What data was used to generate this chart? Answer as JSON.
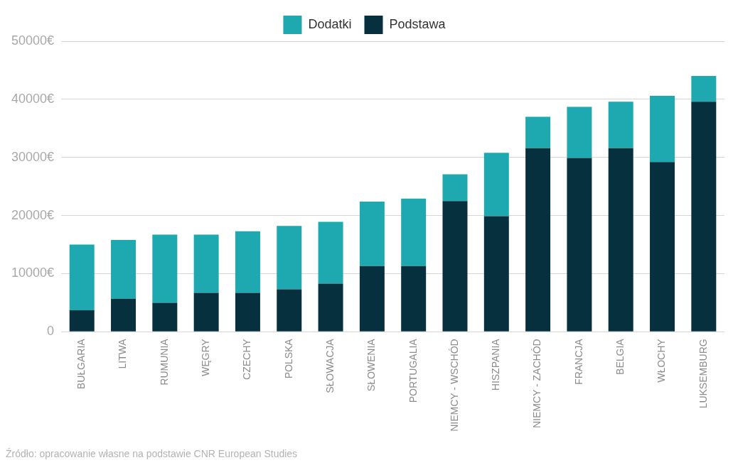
{
  "chart_data": {
    "type": "bar",
    "stacked": true,
    "categories": [
      "BUŁGARIA",
      "LITWA",
      "RUMUNIA",
      "WĘGRY",
      "CZECHY",
      "POLSKA",
      "SŁOWACJA",
      "SŁOWENIA",
      "PORTUGALIA",
      "NIEMCY - WSCHÓD",
      "HISZPANIA",
      "NIEMCY - ZACHÓD",
      "FRANCJA",
      "BELGIA",
      "WŁOCHY",
      "LUKSEMBURG"
    ],
    "series": [
      {
        "name": "Podstawa",
        "color": "#07303f",
        "values": [
          3700,
          5700,
          5000,
          6700,
          6700,
          7300,
          8300,
          11300,
          11300,
          22500,
          19900,
          31600,
          29900,
          31600,
          29200,
          39600
        ]
      },
      {
        "name": "Dodatki",
        "color": "#1ea9b0",
        "values": [
          11300,
          10100,
          11700,
          10000,
          10600,
          10900,
          10600,
          11100,
          11600,
          4600,
          10900,
          5400,
          8800,
          8000,
          11400,
          4400
        ]
      }
    ],
    "ylim": [
      0,
      50000
    ],
    "yticks": [
      {
        "value": 0,
        "label": "0"
      },
      {
        "value": 10000,
        "label": "10000€"
      },
      {
        "value": 20000,
        "label": "20000€"
      },
      {
        "value": 30000,
        "label": "30000€"
      },
      {
        "value": 40000,
        "label": "40000€"
      },
      {
        "value": 50000,
        "label": "50000€"
      }
    ],
    "grid": "y",
    "legend": "top",
    "annotations": [
      "Źródło: opracowanie własne na podstawie CNR European Studies"
    ]
  }
}
